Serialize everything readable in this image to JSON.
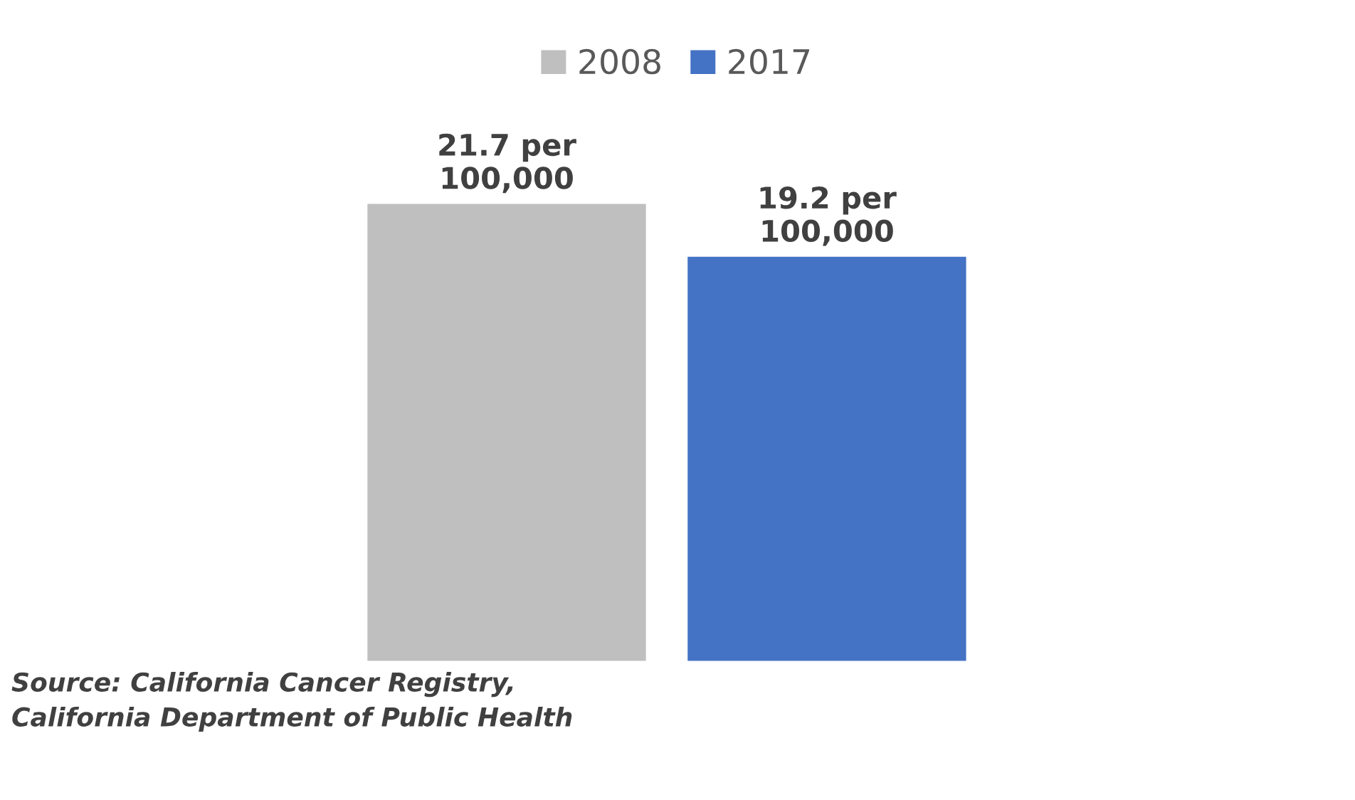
{
  "chart_data": {
    "type": "bar",
    "categories": [
      null
    ],
    "series": [
      {
        "name": "2008",
        "color": "#bfbfbf",
        "values": [
          21.7
        ],
        "value_labels": [
          "21.7 per\n100,000"
        ]
      },
      {
        "name": "2017",
        "color": "#4472c4",
        "values": [
          19.2
        ],
        "value_labels": [
          "19.2 per\n100,000"
        ]
      }
    ],
    "grid": false,
    "legend": "top",
    "annotations": [
      "Source: California Cancer Registry,\nCalifornia Department of Public Health"
    ]
  }
}
